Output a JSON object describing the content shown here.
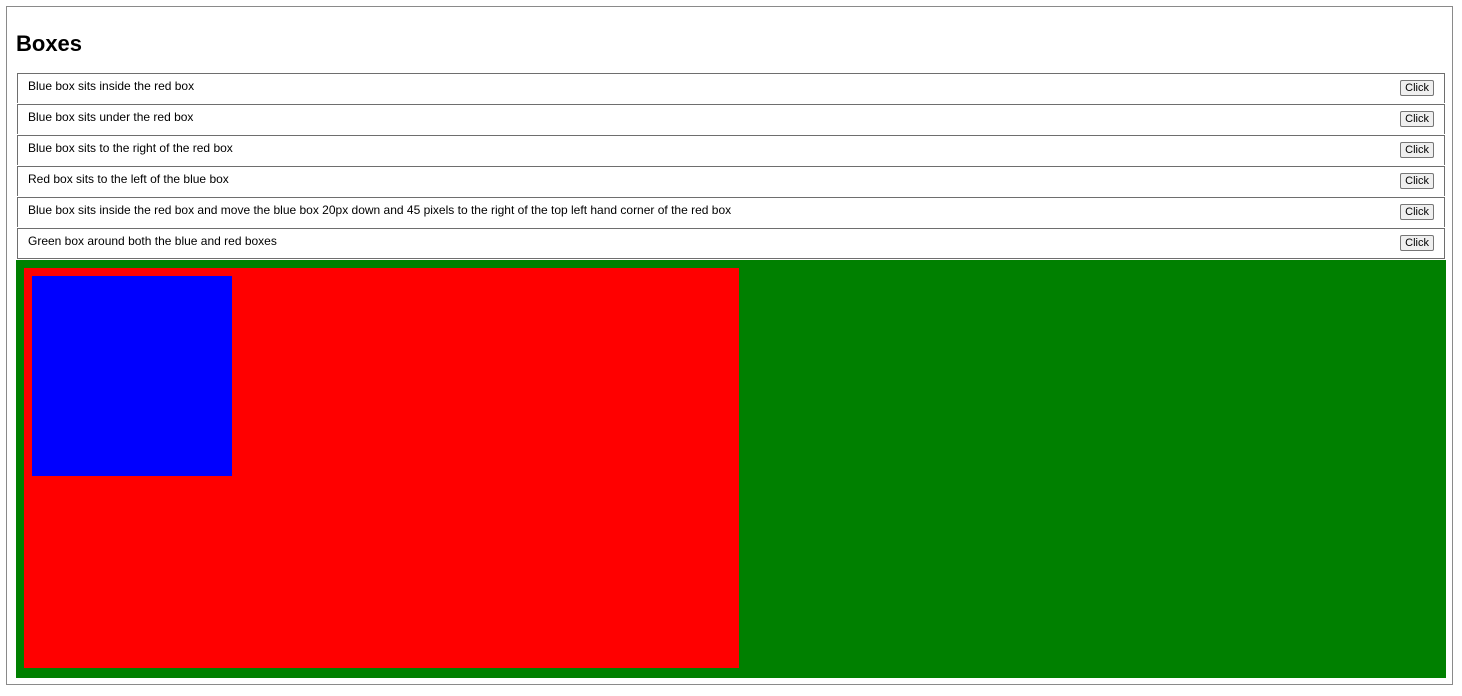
{
  "page": {
    "title": "Boxes"
  },
  "tasks": [
    {
      "text": "Blue box sits inside the red box",
      "button_label": "Click"
    },
    {
      "text": "Blue box sits under the red box",
      "button_label": "Click"
    },
    {
      "text": "Blue box sits to the right of the red box",
      "button_label": "Click"
    },
    {
      "text": "Red box sits to the left of the blue box",
      "button_label": "Click"
    },
    {
      "text": "Blue box sits inside the red box and move the blue box 20px down and 45 pixels to the right of the top left hand corner of the red box",
      "button_label": "Click"
    },
    {
      "text": "Green box around both the blue and red boxes",
      "button_label": "Click"
    }
  ],
  "boxes": {
    "green": {
      "color": "#008000"
    },
    "red": {
      "color": "#ff0000"
    },
    "blue": {
      "color": "#0000ff"
    }
  }
}
